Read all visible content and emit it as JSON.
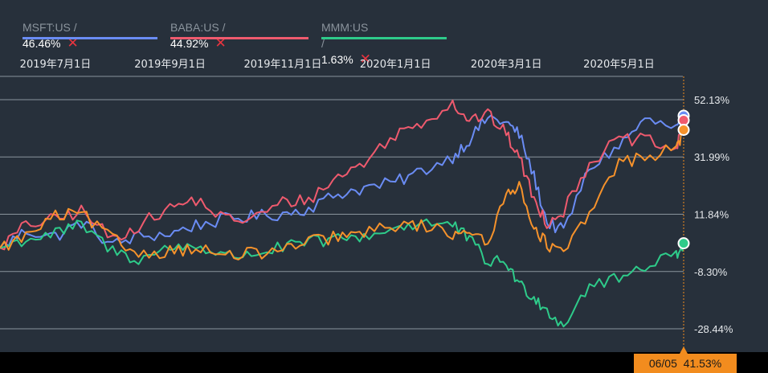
{
  "colors": {
    "msft": "#6a8cf4",
    "baba": "#ef5a6e",
    "mmm": "#2ecb8a",
    "orange": "#f6922b",
    "background": "#27303b",
    "grid": "#8a949c"
  },
  "legend": [
    {
      "symbol": "MSFT:US",
      "sep": " / ",
      "value": "46.46%",
      "color": "#6a8cf4"
    },
    {
      "symbol": "BABA:US",
      "sep": " / ",
      "value": "44.92%",
      "color": "#ef5a6e"
    },
    {
      "symbol": "MMM:US",
      "sep": " / ",
      "value": "1.63%",
      "color": "#2ecb8a"
    }
  ],
  "tooltip": {
    "date": "06/05",
    "value": "41.53%"
  },
  "chart_data": {
    "type": "line",
    "x_tick_labels": [
      "2019年7月1日",
      "2019年9月1日",
      "2019年11月1日",
      "2020年1月1日",
      "2020年3月1日",
      "2020年5月1日"
    ],
    "y_tick_labels": [
      "52.13%",
      "31.99%",
      "11.84%",
      "-8.30%",
      "-28.44%"
    ],
    "y_ticks": [
      52.13,
      31.99,
      11.84,
      -8.3,
      -28.44
    ],
    "ylim": [
      -28.44,
      52.13
    ],
    "x": [
      "2019-06-01",
      "2019-06-15",
      "2019-07-01",
      "2019-07-15",
      "2019-08-01",
      "2019-08-15",
      "2019-09-01",
      "2019-09-15",
      "2019-10-01",
      "2019-10-15",
      "2019-11-01",
      "2019-11-15",
      "2019-12-01",
      "2019-12-15",
      "2020-01-01",
      "2020-01-15",
      "2020-02-01",
      "2020-02-10",
      "2020-02-20",
      "2020-03-01",
      "2020-03-08",
      "2020-03-16",
      "2020-03-23",
      "2020-04-01",
      "2020-04-15",
      "2020-05-01",
      "2020-05-15",
      "2020-06-01",
      "2020-06-05"
    ],
    "series": [
      {
        "name": "MSFT:US",
        "color": "#6a8cf4",
        "values": [
          0,
          6,
          4,
          9,
          1,
          4,
          5,
          8,
          10,
          11,
          12,
          14,
          19,
          21,
          23,
          27,
          32,
          38,
          46,
          44,
          40,
          25,
          9,
          6,
          28,
          36,
          45,
          42,
          46.46
        ]
      },
      {
        "name": "BABA:US",
        "color": "#ef5a6e",
        "values": [
          0,
          8,
          10,
          13,
          3,
          8,
          14,
          17,
          10,
          10,
          16,
          17,
          25,
          30,
          40,
          44,
          51,
          45,
          47,
          40,
          32,
          17,
          9,
          13,
          30,
          38,
          38,
          34,
          44.92
        ]
      },
      {
        "name": "MMM:US",
        "color": "#2ecb8a",
        "values": [
          0,
          3,
          5,
          8,
          -1,
          -4,
          0,
          1,
          -3,
          -2,
          0,
          2,
          3,
          4,
          7,
          9,
          8,
          3,
          -5,
          -5,
          -13,
          -17,
          -22,
          -27,
          -13,
          -11,
          -6,
          -2,
          1.63
        ]
      },
      {
        "name": "",
        "color": "#f6922b",
        "values": [
          0,
          4,
          11,
          12,
          3,
          -2,
          -1,
          0,
          -3,
          -2,
          -1,
          2,
          4,
          5,
          8,
          8,
          5,
          7,
          0,
          21,
          21,
          8,
          1,
          -2,
          12,
          30,
          32,
          35,
          41.53
        ]
      }
    ]
  }
}
